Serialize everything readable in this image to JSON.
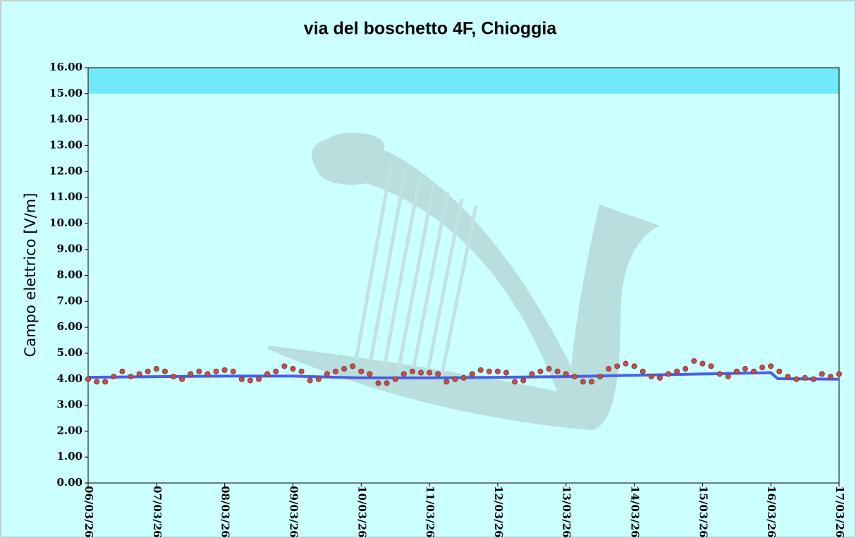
{
  "chart_data": {
    "type": "scatter",
    "title": "via del boschetto 4F, Chioggia",
    "y_label": "Campo elettrico [V/m]",
    "xlim": [
      0,
      11
    ],
    "ylim": [
      0,
      16
    ],
    "xticks": [
      {
        "value": 0,
        "label": "06/03/26"
      },
      {
        "value": 1,
        "label": "07/03/26"
      },
      {
        "value": 2,
        "label": "08/03/26"
      },
      {
        "value": 3,
        "label": "09/03/26"
      },
      {
        "value": 4,
        "label": "10/03/26"
      },
      {
        "value": 5,
        "label": "11/03/26"
      },
      {
        "value": 6,
        "label": "12/03/26"
      },
      {
        "value": 7,
        "label": "13/03/26"
      },
      {
        "value": 8,
        "label": "14/03/26"
      },
      {
        "value": 9,
        "label": "15/03/26"
      },
      {
        "value": 10,
        "label": "16/03/26"
      },
      {
        "value": 11,
        "label": "17/03/26"
      }
    ],
    "yticks": [
      {
        "value": 0,
        "label": "0.00"
      },
      {
        "value": 1,
        "label": "1.00"
      },
      {
        "value": 2,
        "label": "2.00"
      },
      {
        "value": 3,
        "label": "3.00"
      },
      {
        "value": 4,
        "label": "4.00"
      },
      {
        "value": 5,
        "label": "5.00"
      },
      {
        "value": 6,
        "label": "6.00"
      },
      {
        "value": 7,
        "label": "7.00"
      },
      {
        "value": 8,
        "label": "8.00"
      },
      {
        "value": 9,
        "label": "9.00"
      },
      {
        "value": 10,
        "label": "10.00"
      },
      {
        "value": 11,
        "label": "11.00"
      },
      {
        "value": 12,
        "label": "12.00"
      },
      {
        "value": 13,
        "label": "13.00"
      },
      {
        "value": 14,
        "label": "14.00"
      },
      {
        "value": 15,
        "label": "15.00"
      },
      {
        "value": 16,
        "label": "16.00"
      }
    ],
    "limit_band": [
      15,
      16
    ],
    "band_color": "#74e8fb",
    "series": [
      {
        "type": "scatter",
        "color": "#c0504d",
        "x": [
          0,
          0.125,
          0.25,
          0.375,
          0.5,
          0.625,
          0.75,
          0.875,
          1,
          1.125,
          1.25,
          1.375,
          1.5,
          1.625,
          1.75,
          1.875,
          2,
          2.125,
          2.25,
          2.375,
          2.5,
          2.625,
          2.75,
          2.875,
          3,
          3.125,
          3.25,
          3.375,
          3.5,
          3.625,
          3.75,
          3.875,
          4,
          4.125,
          4.25,
          4.375,
          4.5,
          4.625,
          4.75,
          4.875,
          5,
          5.125,
          5.25,
          5.375,
          5.5,
          5.625,
          5.75,
          5.875,
          6,
          6.125,
          6.25,
          6.375,
          6.5,
          6.625,
          6.75,
          6.875,
          7,
          7.125,
          7.25,
          7.375,
          7.5,
          7.625,
          7.75,
          7.875,
          8,
          8.125,
          8.25,
          8.375,
          8.5,
          8.625,
          8.75,
          8.875,
          9,
          9.125,
          9.25,
          9.375,
          9.5,
          9.625,
          9.75,
          9.875,
          10,
          10.125,
          10.25,
          10.375,
          10.5,
          10.625,
          10.75,
          10.875,
          11
        ],
        "values": [
          4.0,
          3.9,
          3.9,
          4.1,
          4.3,
          4.1,
          4.2,
          4.3,
          4.4,
          4.3,
          4.1,
          4.0,
          4.2,
          4.3,
          4.2,
          4.3,
          4.35,
          4.3,
          4.0,
          3.95,
          4.0,
          4.2,
          4.3,
          4.5,
          4.4,
          4.3,
          3.95,
          4.0,
          4.2,
          4.3,
          4.4,
          4.5,
          4.3,
          4.2,
          3.85,
          3.85,
          4.0,
          4.2,
          4.3,
          4.25,
          4.25,
          4.2,
          3.9,
          4.0,
          4.05,
          4.2,
          4.35,
          4.3,
          4.3,
          4.25,
          3.9,
          3.95,
          4.2,
          4.3,
          4.4,
          4.3,
          4.2,
          4.1,
          3.9,
          3.9,
          4.1,
          4.4,
          4.5,
          4.6,
          4.5,
          4.3,
          4.1,
          4.05,
          4.2,
          4.3,
          4.4,
          4.7,
          4.6,
          4.5,
          4.2,
          4.1,
          4.3,
          4.4,
          4.3,
          4.45,
          4.5,
          4.3,
          4.1,
          4.0,
          4.05,
          4.0,
          4.2,
          4.1,
          4.2
        ]
      },
      {
        "type": "line",
        "color": "#4a5fe8",
        "x": [
          0,
          1,
          2,
          3,
          4,
          5,
          6,
          7,
          8,
          9,
          10,
          10.1,
          11
        ],
        "values": [
          4.07,
          4.1,
          4.12,
          4.12,
          4.05,
          4.05,
          4.07,
          4.1,
          4.15,
          4.2,
          4.25,
          4.02,
          4.0
        ]
      }
    ]
  }
}
